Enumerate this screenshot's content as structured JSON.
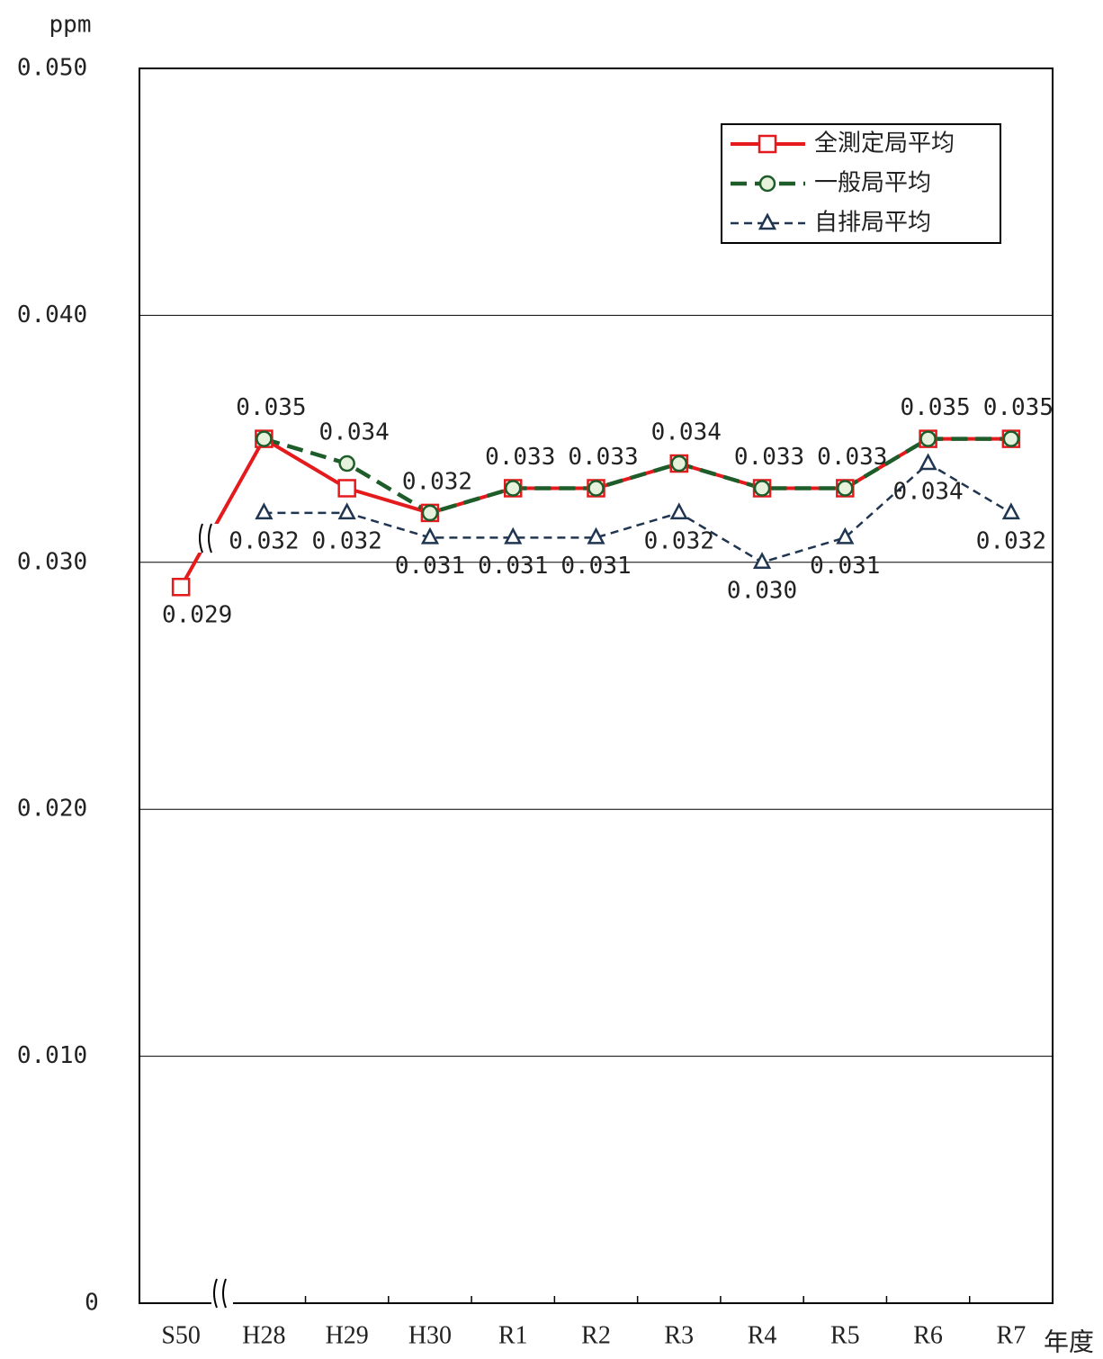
{
  "chart_data": {
    "type": "line",
    "y_label": "ppm",
    "x_label": "年度",
    "categories": [
      "S50",
      "H28",
      "H29",
      "H30",
      "R1",
      "R2",
      "R3",
      "R4",
      "R5",
      "R6",
      "R7"
    ],
    "ylim": [
      0,
      0.05
    ],
    "yticks": [
      0,
      {
        "value": 0.01,
        "label": "0.010"
      },
      {
        "value": 0.02,
        "label": "0.020"
      },
      {
        "value": 0.03,
        "label": "0.030"
      },
      {
        "value": 0.04,
        "label": "0.040"
      },
      {
        "value": 0.05,
        "label": "0.050"
      }
    ],
    "grid": true,
    "legend": "upper right",
    "series": [
      {
        "name": "全測定局平均",
        "color": "#e41a1c",
        "marker": "square",
        "line": "solid",
        "values": [
          0.029,
          0.035,
          0.033,
          0.032,
          0.033,
          0.033,
          0.034,
          0.033,
          0.033,
          0.035,
          0.035
        ],
        "value_labels": [
          "0.029",
          null,
          null,
          null,
          null,
          null,
          null,
          null,
          null,
          null,
          null
        ]
      },
      {
        "name": "一般局平均",
        "color": "#1e5c2a",
        "marker": "circle",
        "line": "dashed",
        "values": [
          null,
          0.035,
          0.034,
          0.032,
          0.033,
          0.033,
          0.034,
          0.033,
          0.033,
          0.035,
          0.035
        ],
        "value_labels": [
          null,
          "0.035",
          "0.034",
          "0.032",
          "0.033",
          "0.033",
          "0.034",
          "0.033",
          "0.033",
          "0.035",
          "0.035"
        ]
      },
      {
        "name": "自排局平均",
        "color": "#1f3550",
        "marker": "triangle",
        "line": "dotted",
        "values": [
          null,
          0.032,
          0.032,
          0.031,
          0.031,
          0.031,
          0.032,
          0.03,
          0.031,
          0.034,
          0.032
        ],
        "value_labels": [
          null,
          "0.032",
          "0.032",
          "0.031",
          "0.031",
          "0.031",
          "0.032",
          "0.030",
          "0.031",
          "0.034",
          "0.032"
        ]
      }
    ]
  }
}
